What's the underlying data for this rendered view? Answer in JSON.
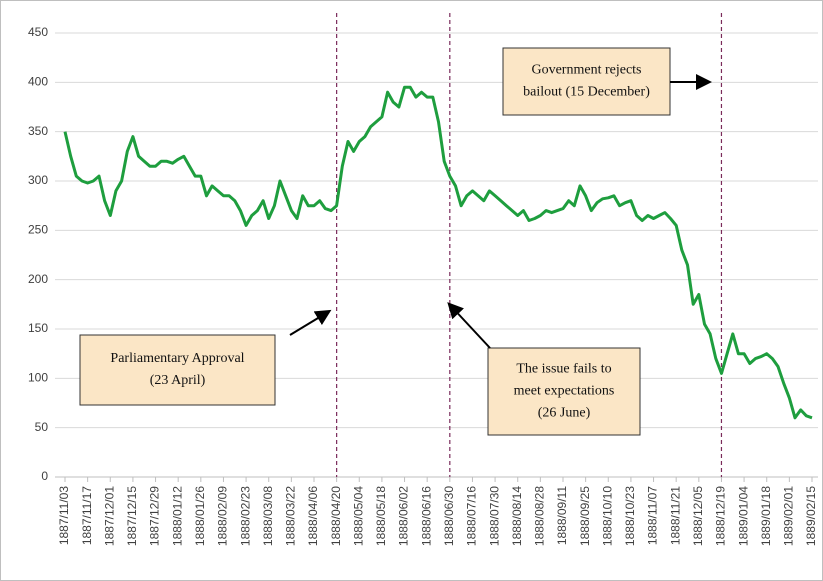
{
  "chart_data": {
    "type": "line",
    "categories": [
      "1887/11/03",
      null,
      null,
      null,
      "1887/11/17",
      null,
      null,
      null,
      "1887/12/01",
      null,
      null,
      null,
      "1887/12/15",
      null,
      null,
      null,
      "1887/12/29",
      null,
      null,
      null,
      "1888/01/12",
      null,
      null,
      null,
      "1888/01/26",
      null,
      null,
      null,
      "1888/02/09",
      null,
      null,
      null,
      "1888/02/23",
      null,
      null,
      null,
      "1888/03/08",
      null,
      null,
      null,
      "1888/03/22",
      null,
      null,
      null,
      "1888/04/06",
      null,
      null,
      null,
      "1888/04/20",
      null,
      null,
      null,
      "1888/05/04",
      null,
      null,
      null,
      "1888/05/18",
      null,
      null,
      null,
      "1888/06/02",
      null,
      null,
      null,
      "1888/06/16",
      null,
      null,
      null,
      "1888/06/30",
      null,
      null,
      null,
      "1888/07/16",
      null,
      null,
      null,
      "1888/07/30",
      null,
      null,
      null,
      "1888/08/14",
      null,
      null,
      null,
      "1888/08/28",
      null,
      null,
      null,
      "1888/09/11",
      null,
      null,
      null,
      "1888/09/25",
      null,
      null,
      null,
      "1888/10/10",
      null,
      null,
      null,
      "1888/10/23",
      null,
      null,
      null,
      "1888/11/07",
      null,
      null,
      null,
      "1888/11/21",
      null,
      null,
      null,
      "1888/12/05",
      null,
      null,
      null,
      "1888/12/19",
      null,
      null,
      null,
      "1889/01/04",
      null,
      null,
      null,
      "1889/01/18",
      null,
      null,
      null,
      "1889/02/01",
      null,
      null,
      null,
      "1889/02/15"
    ],
    "values": [
      350,
      325,
      305,
      300,
      298,
      300,
      305,
      280,
      265,
      290,
      300,
      330,
      345,
      325,
      320,
      315,
      315,
      320,
      320,
      318,
      322,
      325,
      315,
      305,
      305,
      285,
      295,
      290,
      285,
      285,
      280,
      270,
      255,
      265,
      270,
      280,
      262,
      275,
      300,
      285,
      270,
      262,
      285,
      275,
      275,
      280,
      272,
      270,
      275,
      315,
      340,
      330,
      340,
      345,
      355,
      360,
      365,
      390,
      380,
      375,
      395,
      395,
      385,
      390,
      385,
      385,
      360,
      320,
      305,
      295,
      275,
      285,
      290,
      285,
      280,
      290,
      285,
      280,
      275,
      270,
      265,
      270,
      260,
      262,
      265,
      270,
      268,
      270,
      272,
      280,
      275,
      295,
      285,
      270,
      278,
      282,
      283,
      285,
      275,
      278,
      280,
      265,
      260,
      265,
      262,
      265,
      268,
      262,
      255,
      230,
      215,
      175,
      185,
      155,
      145,
      120,
      105,
      125,
      145,
      125,
      125,
      115,
      120,
      122,
      125,
      120,
      112,
      95,
      80,
      60,
      68,
      62,
      60
    ],
    "color": "#1e9e3e",
    "ylim": [
      0,
      450
    ],
    "yticks": [
      0,
      50,
      100,
      150,
      200,
      250,
      300,
      350,
      400,
      450
    ],
    "grid": true,
    "annotations": [
      {
        "x": "1888/04/20",
        "lines": [
          "Parliamentary  Approval",
          "(23 April)"
        ]
      },
      {
        "x": "1888/06/30",
        "lines": [
          "The issue fails to",
          "meet expectations",
          "(26 June)"
        ]
      },
      {
        "x": "1888/12/19",
        "lines": [
          "Government rejects",
          "bailout (15 December)"
        ]
      }
    ]
  }
}
